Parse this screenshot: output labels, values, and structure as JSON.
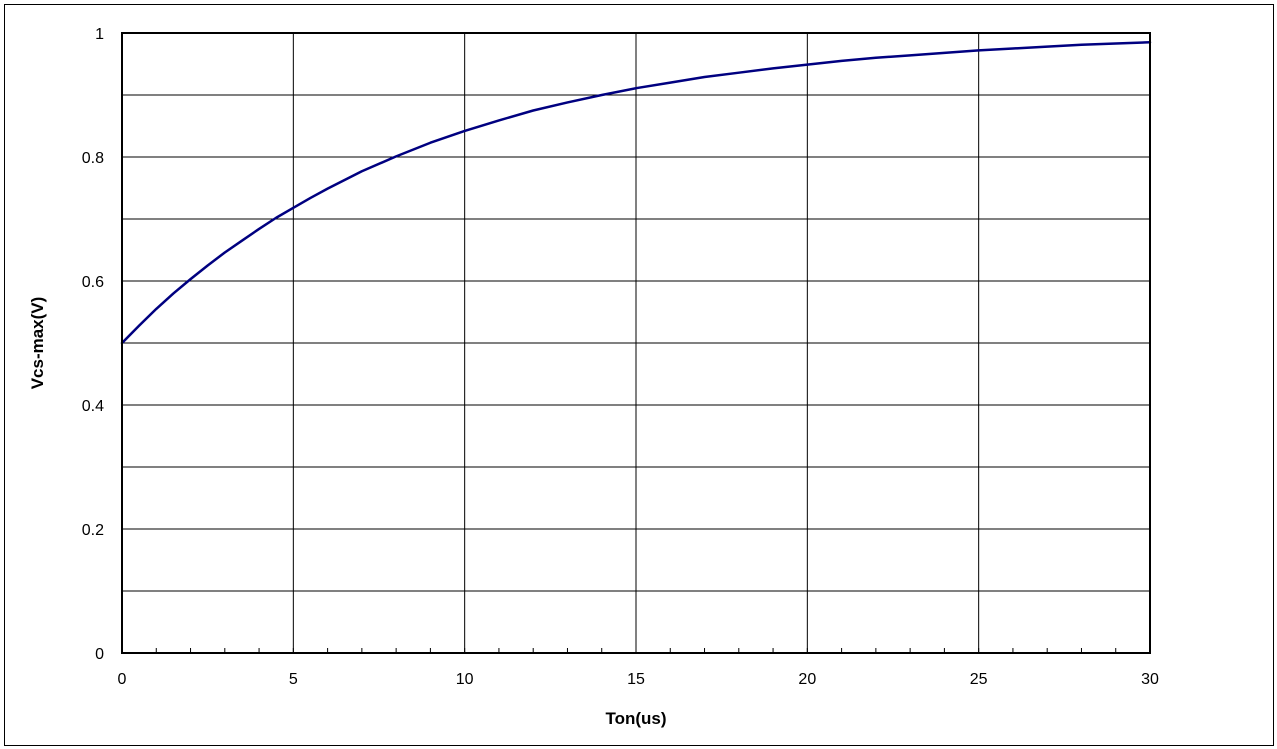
{
  "chart_data": {
    "type": "line",
    "title": "",
    "xlabel": "Ton(us)",
    "ylabel": "Vcs-max(V)",
    "xlim": [
      0,
      30
    ],
    "ylim": [
      0,
      1
    ],
    "x_ticks": [
      0,
      5,
      10,
      15,
      20,
      25,
      30
    ],
    "x_tick_labels": [
      "0",
      "5",
      "10",
      "15",
      "20",
      "25",
      "30"
    ],
    "y_ticks": [
      0,
      0.2,
      0.4,
      0.6,
      0.8,
      1
    ],
    "y_tick_labels": [
      "0",
      "0.2",
      "0.4",
      "0.6",
      "0.8",
      "1"
    ],
    "grid": true,
    "legend": "none",
    "colors": {
      "series": "#000080",
      "grid": "#000000",
      "background": "#ffffff"
    },
    "series": [
      {
        "x": [
          0,
          0.5,
          1,
          1.5,
          2,
          2.5,
          3,
          3.5,
          4,
          4.5,
          5,
          5.5,
          6,
          7,
          8,
          9,
          10,
          11,
          12,
          13,
          14,
          15,
          16,
          17,
          18,
          19,
          20,
          21,
          22,
          23,
          24,
          25,
          26,
          27,
          28,
          29,
          30
        ],
        "values": [
          0.5,
          0.528,
          0.555,
          0.58,
          0.603,
          0.625,
          0.646,
          0.665,
          0.684,
          0.702,
          0.718,
          0.734,
          0.749,
          0.777,
          0.801,
          0.823,
          0.842,
          0.859,
          0.875,
          0.888,
          0.9,
          0.911,
          0.92,
          0.929,
          0.936,
          0.943,
          0.949,
          0.955,
          0.96,
          0.964,
          0.968,
          0.972,
          0.975,
          0.978,
          0.981,
          0.983,
          0.985
        ]
      }
    ]
  }
}
